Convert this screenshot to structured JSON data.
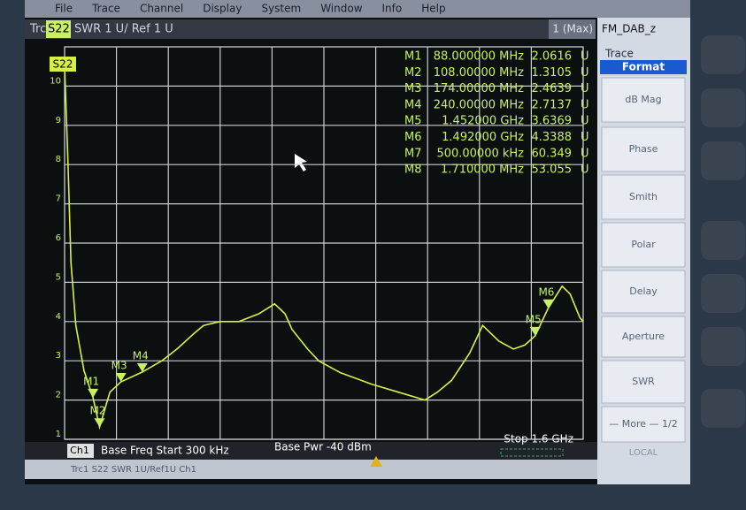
{
  "menu": [
    "File",
    "Trace",
    "Channel",
    "Display",
    "System",
    "Window",
    "Info",
    "Help"
  ],
  "header": {
    "trace": "Trc1",
    "param": "S22",
    "scale": "SWR  1 U/ Ref 1 U",
    "max": "1 (Max)",
    "file": "FM_DAB_z"
  },
  "softkeys": {
    "title": "Trace",
    "selected": "Format",
    "buttons": [
      "dB Mag",
      "Phase",
      "Smith",
      "Polar",
      "Delay",
      "Aperture",
      "SWR",
      "— More — 1/2"
    ],
    "status": "LOCAL"
  },
  "marker_table": [
    {
      "name": "M1",
      "stimulus": "88.000000 MHz",
      "response": "2.0616",
      "unit": "U"
    },
    {
      "name": "M2",
      "stimulus": "108.00000 MHz",
      "response": "1.3105",
      "unit": "U"
    },
    {
      "name": "M3",
      "stimulus": "174.00000 MHz",
      "response": "2.4639",
      "unit": "U"
    },
    {
      "name": "M4",
      "stimulus": "240.00000 MHz",
      "response": "2.7137",
      "unit": "U"
    },
    {
      "name": "M5",
      "stimulus": "1.452000 GHz",
      "response": "3.6369",
      "unit": "U"
    },
    {
      "name": "M6",
      "stimulus": "1.492000 GHz",
      "response": "4.3388",
      "unit": "U"
    },
    {
      "name": "M7",
      "stimulus": "500.00000 kHz",
      "response": "60.349",
      "unit": "U"
    },
    {
      "name": "M8",
      "stimulus": "1.710000 MHz",
      "response": "53.055",
      "unit": "U"
    }
  ],
  "footer": {
    "channel": "Ch1",
    "start": "Base Freq  Start 300 kHz",
    "power": "Base Pwr  -40 dBm",
    "stop": "Stop 1.6 GHz"
  },
  "status_bar": "Trc1   S22   SWR   1U/Ref1U   Ch1",
  "chart_data": {
    "type": "line",
    "x": [
      0.3,
      10,
      20,
      35,
      60,
      88,
      108,
      140,
      174,
      240,
      300,
      347,
      400,
      429,
      480,
      538,
      600,
      648,
      680,
      702,
      750,
      784,
      850,
      948,
      1030,
      1112,
      1150,
      1194,
      1250,
      1290,
      1340,
      1385,
      1420,
      1452,
      1492,
      1535,
      1560,
      1590,
      1600
    ],
    "series": [
      {
        "name": "S22",
        "color": "#d8f040",
        "values": [
          10.5,
          8.2,
          5.5,
          3.9,
          2.75,
          2.06,
          1.3105,
          2.2,
          2.4639,
          2.7137,
          3.0,
          3.3,
          3.7,
          3.9,
          4.0,
          4.0,
          4.2,
          4.45,
          4.2,
          3.8,
          3.3,
          3.0,
          2.7,
          2.4,
          2.2,
          2.0,
          2.2,
          2.5,
          3.2,
          3.9,
          3.5,
          3.3,
          3.4,
          3.6369,
          4.3388,
          4.9,
          4.7,
          4.1,
          4.0
        ]
      }
    ],
    "xlim": [
      0.3,
      1600
    ],
    "ylim": [
      1,
      11
    ],
    "yticks": [
      1,
      2,
      3,
      4,
      5,
      6,
      7,
      8,
      9,
      10
    ],
    "grid": true,
    "markers": [
      {
        "name": "M1",
        "x": 88,
        "y": 2.0616
      },
      {
        "name": "M2",
        "x": 108,
        "y": 1.3105
      },
      {
        "name": "M3",
        "x": 174,
        "y": 2.4639
      },
      {
        "name": "M4",
        "x": 240,
        "y": 2.7137
      },
      {
        "name": "M5",
        "x": 1452,
        "y": 3.6369
      },
      {
        "name": "M6",
        "x": 1492,
        "y": 4.3388
      }
    ]
  }
}
